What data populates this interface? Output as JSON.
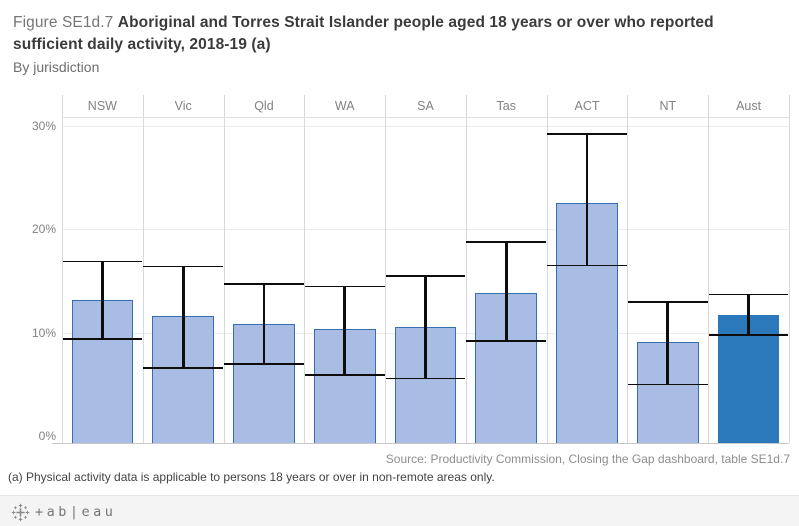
{
  "title": {
    "figure_label": "Figure SE1d.7 ",
    "line1": "Aboriginal and Torres Strait Islander people aged 18 years or over who reported",
    "line2": "sufficient daily activity, 2018-19 (a)",
    "subtitle": "By jurisdiction"
  },
  "chart_data": {
    "type": "bar",
    "title": "Aboriginal and Torres Strait Islander people aged 18 years or over who reported sufficient daily activity, 2018-19",
    "categories": [
      "NSW",
      "Vic",
      "Qld",
      "WA",
      "SA",
      "Tas",
      "ACT",
      "NT",
      "Aust"
    ],
    "values": [
      13.2,
      11.6,
      10.9,
      10.4,
      10.6,
      13.9,
      22.6,
      9.1,
      11.7
    ],
    "error_low": [
      9.4,
      6.6,
      7.0,
      5.9,
      5.6,
      9.2,
      16.5,
      5.0,
      9.8
    ],
    "error_high": [
      16.9,
      16.4,
      14.7,
      14.5,
      15.5,
      18.8,
      29.2,
      13.0,
      13.7
    ],
    "xlabel": "",
    "ylabel": "",
    "ylim": [
      0,
      31
    ],
    "y_ticks": [
      {
        "value": 0,
        "label": "0%"
      },
      {
        "value": 10,
        "label": "10%"
      },
      {
        "value": 20,
        "label": "20%"
      },
      {
        "value": 30,
        "label": "30%"
      }
    ],
    "grid": true,
    "legend": false,
    "error_bars": true,
    "colors": {
      "bar_fill": "#a9bce4",
      "bar_border": "#3470b1",
      "highlight_fill": "#2b78bb",
      "highlight_border": "#2b78bb",
      "error_color": "#0d0d0d"
    },
    "highlight_category": "Aust"
  },
  "source_note": "Source: Productivity Commission, Closing the Gap dashboard, table SE1d.7",
  "footnote": "(a) Physical activity data is applicable to persons 18 years or over in non-remote areas only.",
  "footer": {
    "wordmark": "+ab|eau"
  }
}
